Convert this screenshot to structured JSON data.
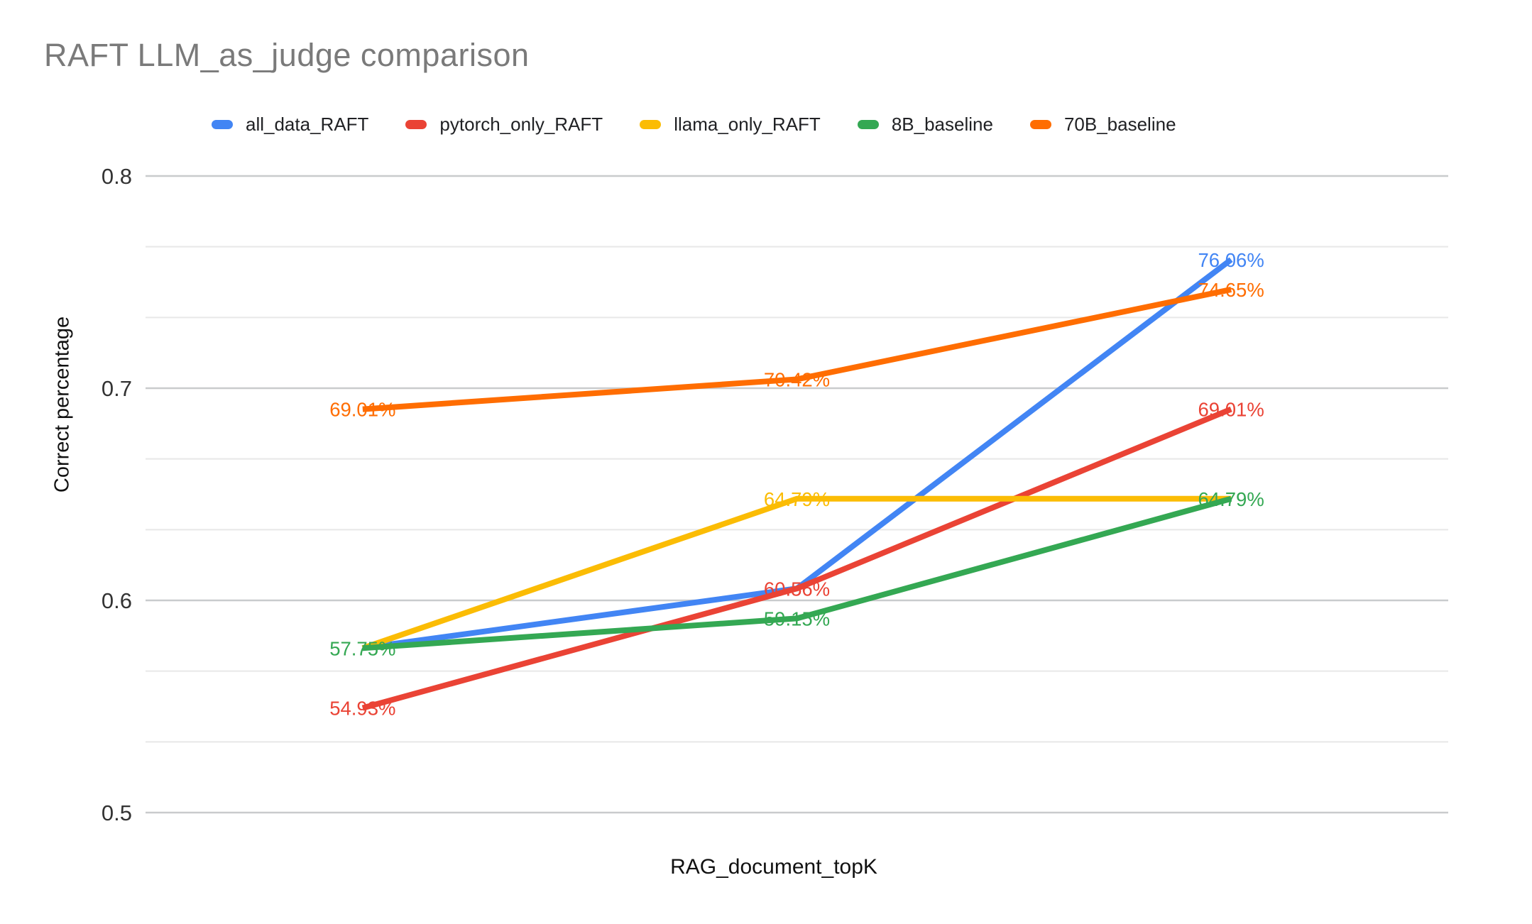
{
  "chart_data": {
    "type": "line",
    "title": "RAFT LLM_as_judge comparison",
    "x_axis": {
      "title": "RAG_document_topK",
      "categories": [
        "",
        "",
        ""
      ],
      "tick_labels_visible": false
    },
    "y_axis": {
      "title": "Correct percentage",
      "min": 0.5,
      "max": 0.8,
      "tick_labels": [
        "0.8",
        "0.7",
        "0.6",
        "0.5"
      ],
      "tick_values": [
        0.8,
        0.7,
        0.6,
        0.5
      ],
      "minor_gridlines_between_majors": 2,
      "grid": true
    },
    "legend_position": "top",
    "series": [
      {
        "name": "all_data_RAFT",
        "color": "#4285F4",
        "values": [
          0.5775,
          0.6056,
          0.7606
        ],
        "point_labels": [
          "",
          "",
          "76.06%"
        ]
      },
      {
        "name": "pytorch_only_RAFT",
        "color": "#EA4335",
        "values": [
          0.5493,
          0.6056,
          0.6901
        ],
        "point_labels": [
          "54.93%",
          "60.56%",
          "69.01%"
        ]
      },
      {
        "name": "llama_only_RAFT",
        "color": "#FBBC04",
        "values": [
          0.5775,
          0.6479,
          0.6479
        ],
        "point_labels": [
          "",
          "64.79%",
          ""
        ]
      },
      {
        "name": "8B_baseline",
        "color": "#34A853",
        "values": [
          0.5775,
          0.5915,
          0.6479
        ],
        "point_labels": [
          "57.75%",
          "59.15%",
          "64.79%"
        ]
      },
      {
        "name": "70B_baseline",
        "color": "#FF6D01",
        "values": [
          0.6901,
          0.7042,
          0.7465
        ],
        "point_labels": [
          "69.01%",
          "70.42%",
          "74.65%"
        ]
      }
    ],
    "style": {
      "major_gridline_color": "#c9cbcd",
      "minor_gridline_color": "#e8e8e8",
      "title_color": "#7a7a7a",
      "axis_text_color": "#333333"
    }
  }
}
